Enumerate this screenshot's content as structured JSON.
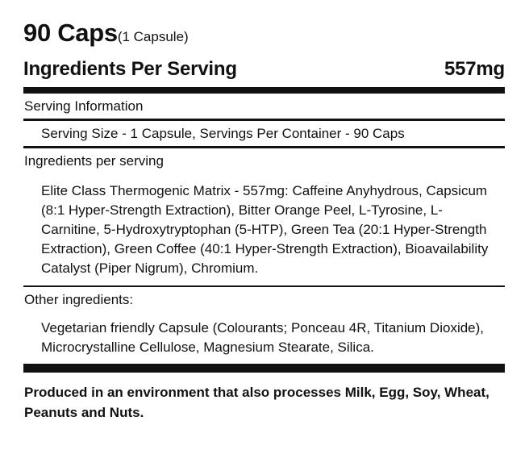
{
  "header": {
    "caps": "90 Caps",
    "serving_unit": "(1 Capsule)"
  },
  "summary": {
    "title": "Ingredients Per Serving",
    "amount": "557mg"
  },
  "serving_info": {
    "label": "Serving Information",
    "text": "Serving Size - 1 Capsule, Servings Per Container - 90 Caps"
  },
  "ingredients": {
    "label": "Ingredients per serving",
    "text": "Elite Class Thermogenic Matrix - 557mg: Caffeine Anyhydrous, Capsicum (8:1 Hyper-Strength Extraction), Bitter Orange Peel, L-Tyrosine, L-Carnitine, 5-Hydroxytryptophan (5-HTP), Green Tea (20:1 Hyper-Strength Extraction), Green Coffee (40:1 Hyper-Strength Extraction), Bioavailability Catalyst (Piper Nigrum), Chromium."
  },
  "other_ingredients": {
    "label": "Other ingredients:",
    "text": "Vegetarian friendly Capsule (Colourants; Ponceau 4R, Titanium Dioxide), Microcrystalline Cellulose, Magnesium Stearate, Silica."
  },
  "allergen_notice": "Produced in an environment that also processes Milk, Egg, Soy, Wheat, Peanuts and Nuts."
}
